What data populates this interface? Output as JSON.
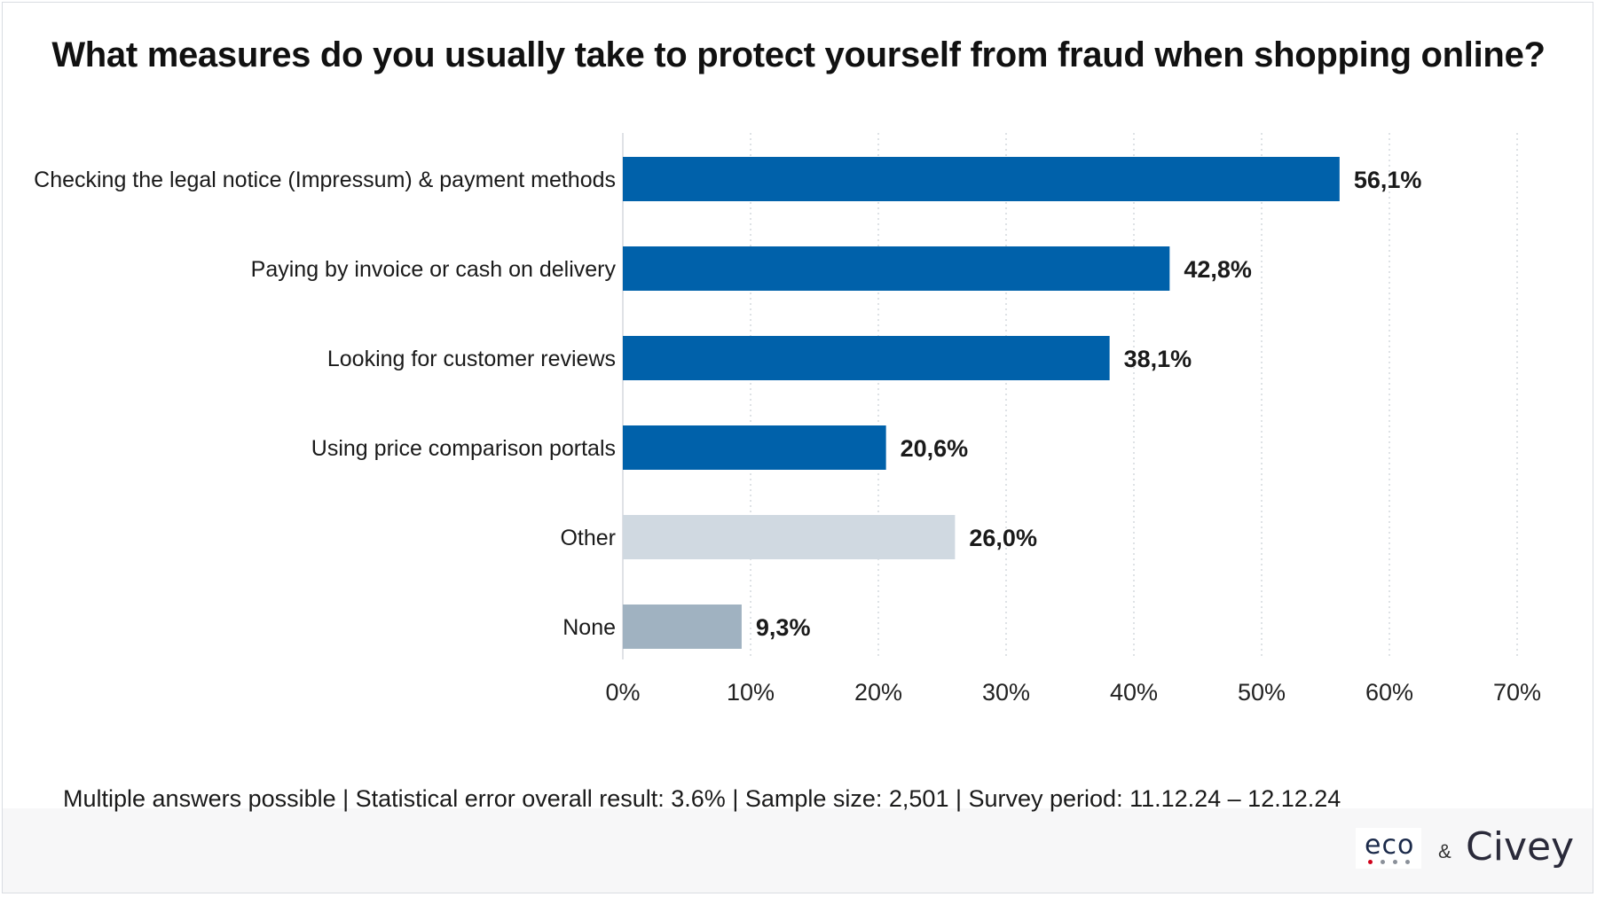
{
  "chart_data": {
    "type": "bar",
    "orientation": "horizontal",
    "title": "What measures do you usually take to protect yourself from fraud when shopping online?",
    "categories": [
      "Checking the legal notice (Impressum) & payment methods",
      "Paying by invoice or cash on delivery",
      "Looking for customer reviews",
      "Using price comparison portals",
      "Other",
      "None"
    ],
    "values": [
      56.1,
      42.8,
      38.1,
      20.6,
      26.0,
      9.3
    ],
    "value_labels": [
      "56,1%",
      "42,8%",
      "38,1%",
      "20,6%",
      "26,0%",
      "9,3%"
    ],
    "colors": [
      "#0061aa",
      "#0061aa",
      "#0061aa",
      "#0061aa",
      "#d0d9e1",
      "#a0b2c1"
    ],
    "xlim": [
      0,
      70
    ],
    "x_ticks": [
      0,
      10,
      20,
      30,
      40,
      50,
      60,
      70
    ],
    "x_tick_labels": [
      "0%",
      "10%",
      "20%",
      "30%",
      "40%",
      "50%",
      "60%",
      "70%"
    ],
    "grid": "vertical-dotted"
  },
  "footnote": "Multiple answers possible | Statistical error overall result: 3.6% | Sample size: 2,501 | Survey period: 11.12.24 – 12.12.24",
  "logos": {
    "eco": "eco",
    "ampersand": "&",
    "civey": "Civey"
  }
}
